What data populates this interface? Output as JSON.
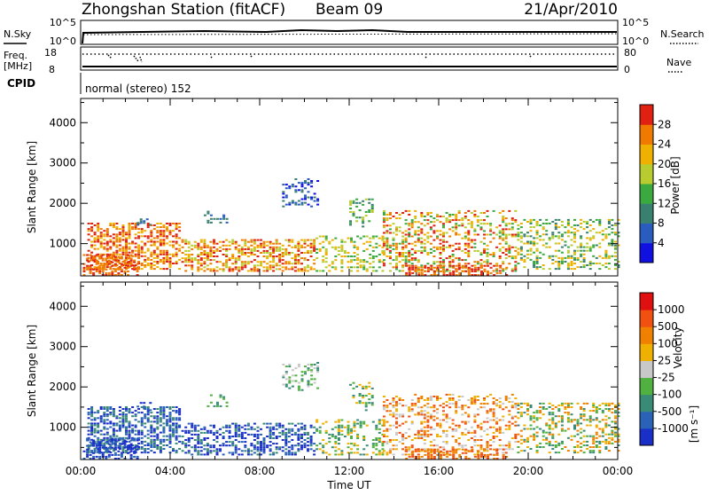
{
  "header": {
    "title": "Zhongshan Station (fitACF)",
    "beam": "Beam 09",
    "date": "21/Apr/2010"
  },
  "aux_panels": {
    "nsky_label": "N.Sky",
    "nsky_ticks": [
      "10^5",
      "10^0"
    ],
    "nsearch_label": "N.Search",
    "nsearch_ticks": [
      "10^5",
      "10^0"
    ],
    "freq_label": "Freq.",
    "freq_unit": "[MHz]",
    "freq_ticks": [
      "18",
      "8"
    ],
    "nave_label": "Nave",
    "nave_ticks": [
      "80",
      "0"
    ],
    "cpid_label": "CPID",
    "cpid_text": "normal (stereo) 152"
  },
  "chart_data": [
    {
      "type": "heatmap",
      "name": "power",
      "ylabel": "Slant Range [km]",
      "xlabel": "",
      "y_ticks": [
        "1000",
        "2000",
        "3000",
        "4000"
      ],
      "ylim": [
        200,
        4600
      ],
      "colorbar_label": "Power [dB]",
      "colorbar_ticks": [
        "4",
        "8",
        "12",
        "16",
        "20",
        "24",
        "28"
      ],
      "colorbar_colors": [
        "#1010e0",
        "#2a5cc0",
        "#3a8070",
        "#3aaa40",
        "#b8cc30",
        "#f0b000",
        "#f07a00",
        "#e02010"
      ]
    },
    {
      "type": "heatmap",
      "name": "velocity",
      "ylabel": "Slant Range [km]",
      "xlabel": "Time UT",
      "x_ticks": [
        "00:00",
        "04:00",
        "08:00",
        "12:00",
        "16:00",
        "20:00",
        "00:00"
      ],
      "y_ticks": [
        "1000",
        "2000",
        "3000",
        "4000"
      ],
      "ylim": [
        200,
        4600
      ],
      "colorbar_label": "Velocity",
      "colorbar_unit": "[m s⁻¹]",
      "colorbar_ticks": [
        "1000",
        "500",
        "100",
        "25",
        "-25",
        "-100",
        "-500",
        "-1000"
      ],
      "colorbar_colors": [
        "#1a2ec8",
        "#2a62b8",
        "#3a8a78",
        "#50b040",
        "#c8c8c8",
        "#f0b000",
        "#f08000",
        "#f05010",
        "#e01010"
      ]
    }
  ]
}
